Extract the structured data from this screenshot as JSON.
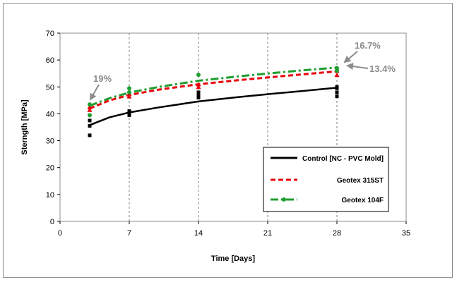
{
  "chart_data": {
    "type": "line",
    "xlabel": "Time [Days]",
    "ylabel": "Sterngth [MPa]",
    "xlim": [
      0,
      35
    ],
    "ylim": [
      0,
      70
    ],
    "xticks": [
      0,
      7,
      14,
      21,
      28,
      35
    ],
    "yticks": [
      0,
      10,
      20,
      30,
      40,
      50,
      60,
      70
    ],
    "x_grid": true,
    "y_grid": false,
    "legend_position": "bottom-right",
    "series": [
      {
        "name": "Control [NC - PVC Mold]",
        "color": "#000000",
        "style": "solid",
        "marker": "square",
        "points": [
          [
            3,
            32
          ],
          [
            3,
            35.5
          ],
          [
            3,
            37.5
          ],
          [
            7,
            39.5
          ],
          [
            7,
            40.5
          ],
          [
            7,
            41
          ],
          [
            14,
            46
          ],
          [
            14,
            47
          ],
          [
            14,
            48
          ],
          [
            28,
            46.5
          ],
          [
            28,
            48
          ],
          [
            28,
            49.5
          ],
          [
            28,
            50
          ]
        ],
        "trend": [
          [
            3,
            35.8
          ],
          [
            5,
            38.7
          ],
          [
            7,
            40.5
          ],
          [
            10,
            42.4
          ],
          [
            14,
            44.6
          ],
          [
            18,
            46.2
          ],
          [
            21,
            47.3
          ],
          [
            24,
            48.3
          ],
          [
            28,
            49.7
          ]
        ]
      },
      {
        "name": "Geotex 315ST",
        "color": "#e8000b",
        "style": "dashed",
        "marker": "triangle",
        "points": [
          [
            3,
            41.5
          ],
          [
            3,
            42.5
          ],
          [
            7,
            46.5
          ],
          [
            7,
            47.5
          ],
          [
            14,
            50
          ],
          [
            14,
            51
          ],
          [
            28,
            54.5
          ],
          [
            28,
            56
          ]
        ],
        "trend": [
          [
            3,
            42
          ],
          [
            5,
            45
          ],
          [
            7,
            47
          ],
          [
            10,
            49
          ],
          [
            14,
            51
          ],
          [
            18,
            52.5
          ],
          [
            21,
            53.5
          ],
          [
            24,
            54.5
          ],
          [
            28,
            55.8
          ]
        ]
      },
      {
        "name": "Geotex 104F",
        "color": "#1e9e30",
        "style": "dashdot",
        "marker": "circle",
        "points": [
          [
            3,
            39.5
          ],
          [
            3,
            43.5
          ],
          [
            7,
            48
          ],
          [
            7,
            49.5
          ],
          [
            14,
            54.5
          ],
          [
            28,
            56
          ],
          [
            28,
            57
          ]
        ],
        "trend": [
          [
            3,
            43
          ],
          [
            5,
            45.8
          ],
          [
            7,
            47.9
          ],
          [
            10,
            50
          ],
          [
            14,
            52.3
          ],
          [
            18,
            53.9
          ],
          [
            21,
            55
          ],
          [
            24,
            56
          ],
          [
            28,
            57.2
          ]
        ]
      }
    ],
    "annotations": [
      {
        "text": "19%",
        "x": 3,
        "y": 43.5
      },
      {
        "text": "16.7%",
        "x": 28,
        "y": 57.5
      },
      {
        "text": "13.4%",
        "x": 28,
        "y": 56
      }
    ]
  }
}
